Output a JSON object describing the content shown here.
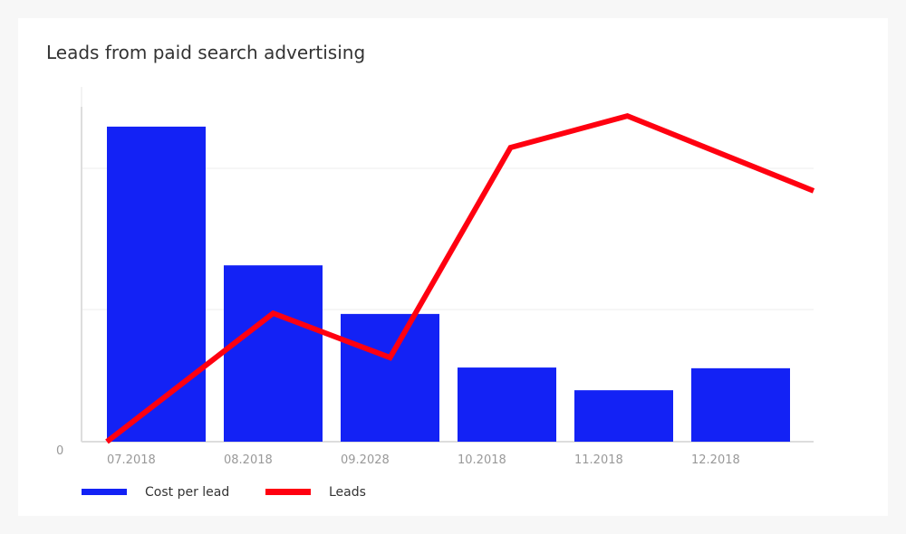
{
  "chart_data": {
    "type": "bar",
    "title": "Leads from paid search advertising",
    "categories": [
      "07.2018",
      "08.2018",
      "09.2028",
      "10.2018",
      "11.2018",
      "12.2018"
    ],
    "y_tick_labels": [
      "0"
    ],
    "ylim": [
      0,
      100
    ],
    "grid": true,
    "legend_placement": "bottom-left",
    "series": [
      {
        "name": "Cost per lead",
        "type": "bar",
        "color": "#1322f5",
        "values": [
          88.8,
          49.7,
          36,
          20.9,
          14.5,
          20.7
        ]
      },
      {
        "name": "Leads",
        "type": "line",
        "color": "#ff0010",
        "values": [
          0,
          36.2,
          23.7,
          82.9,
          91.8,
          70.7
        ]
      }
    ]
  }
}
